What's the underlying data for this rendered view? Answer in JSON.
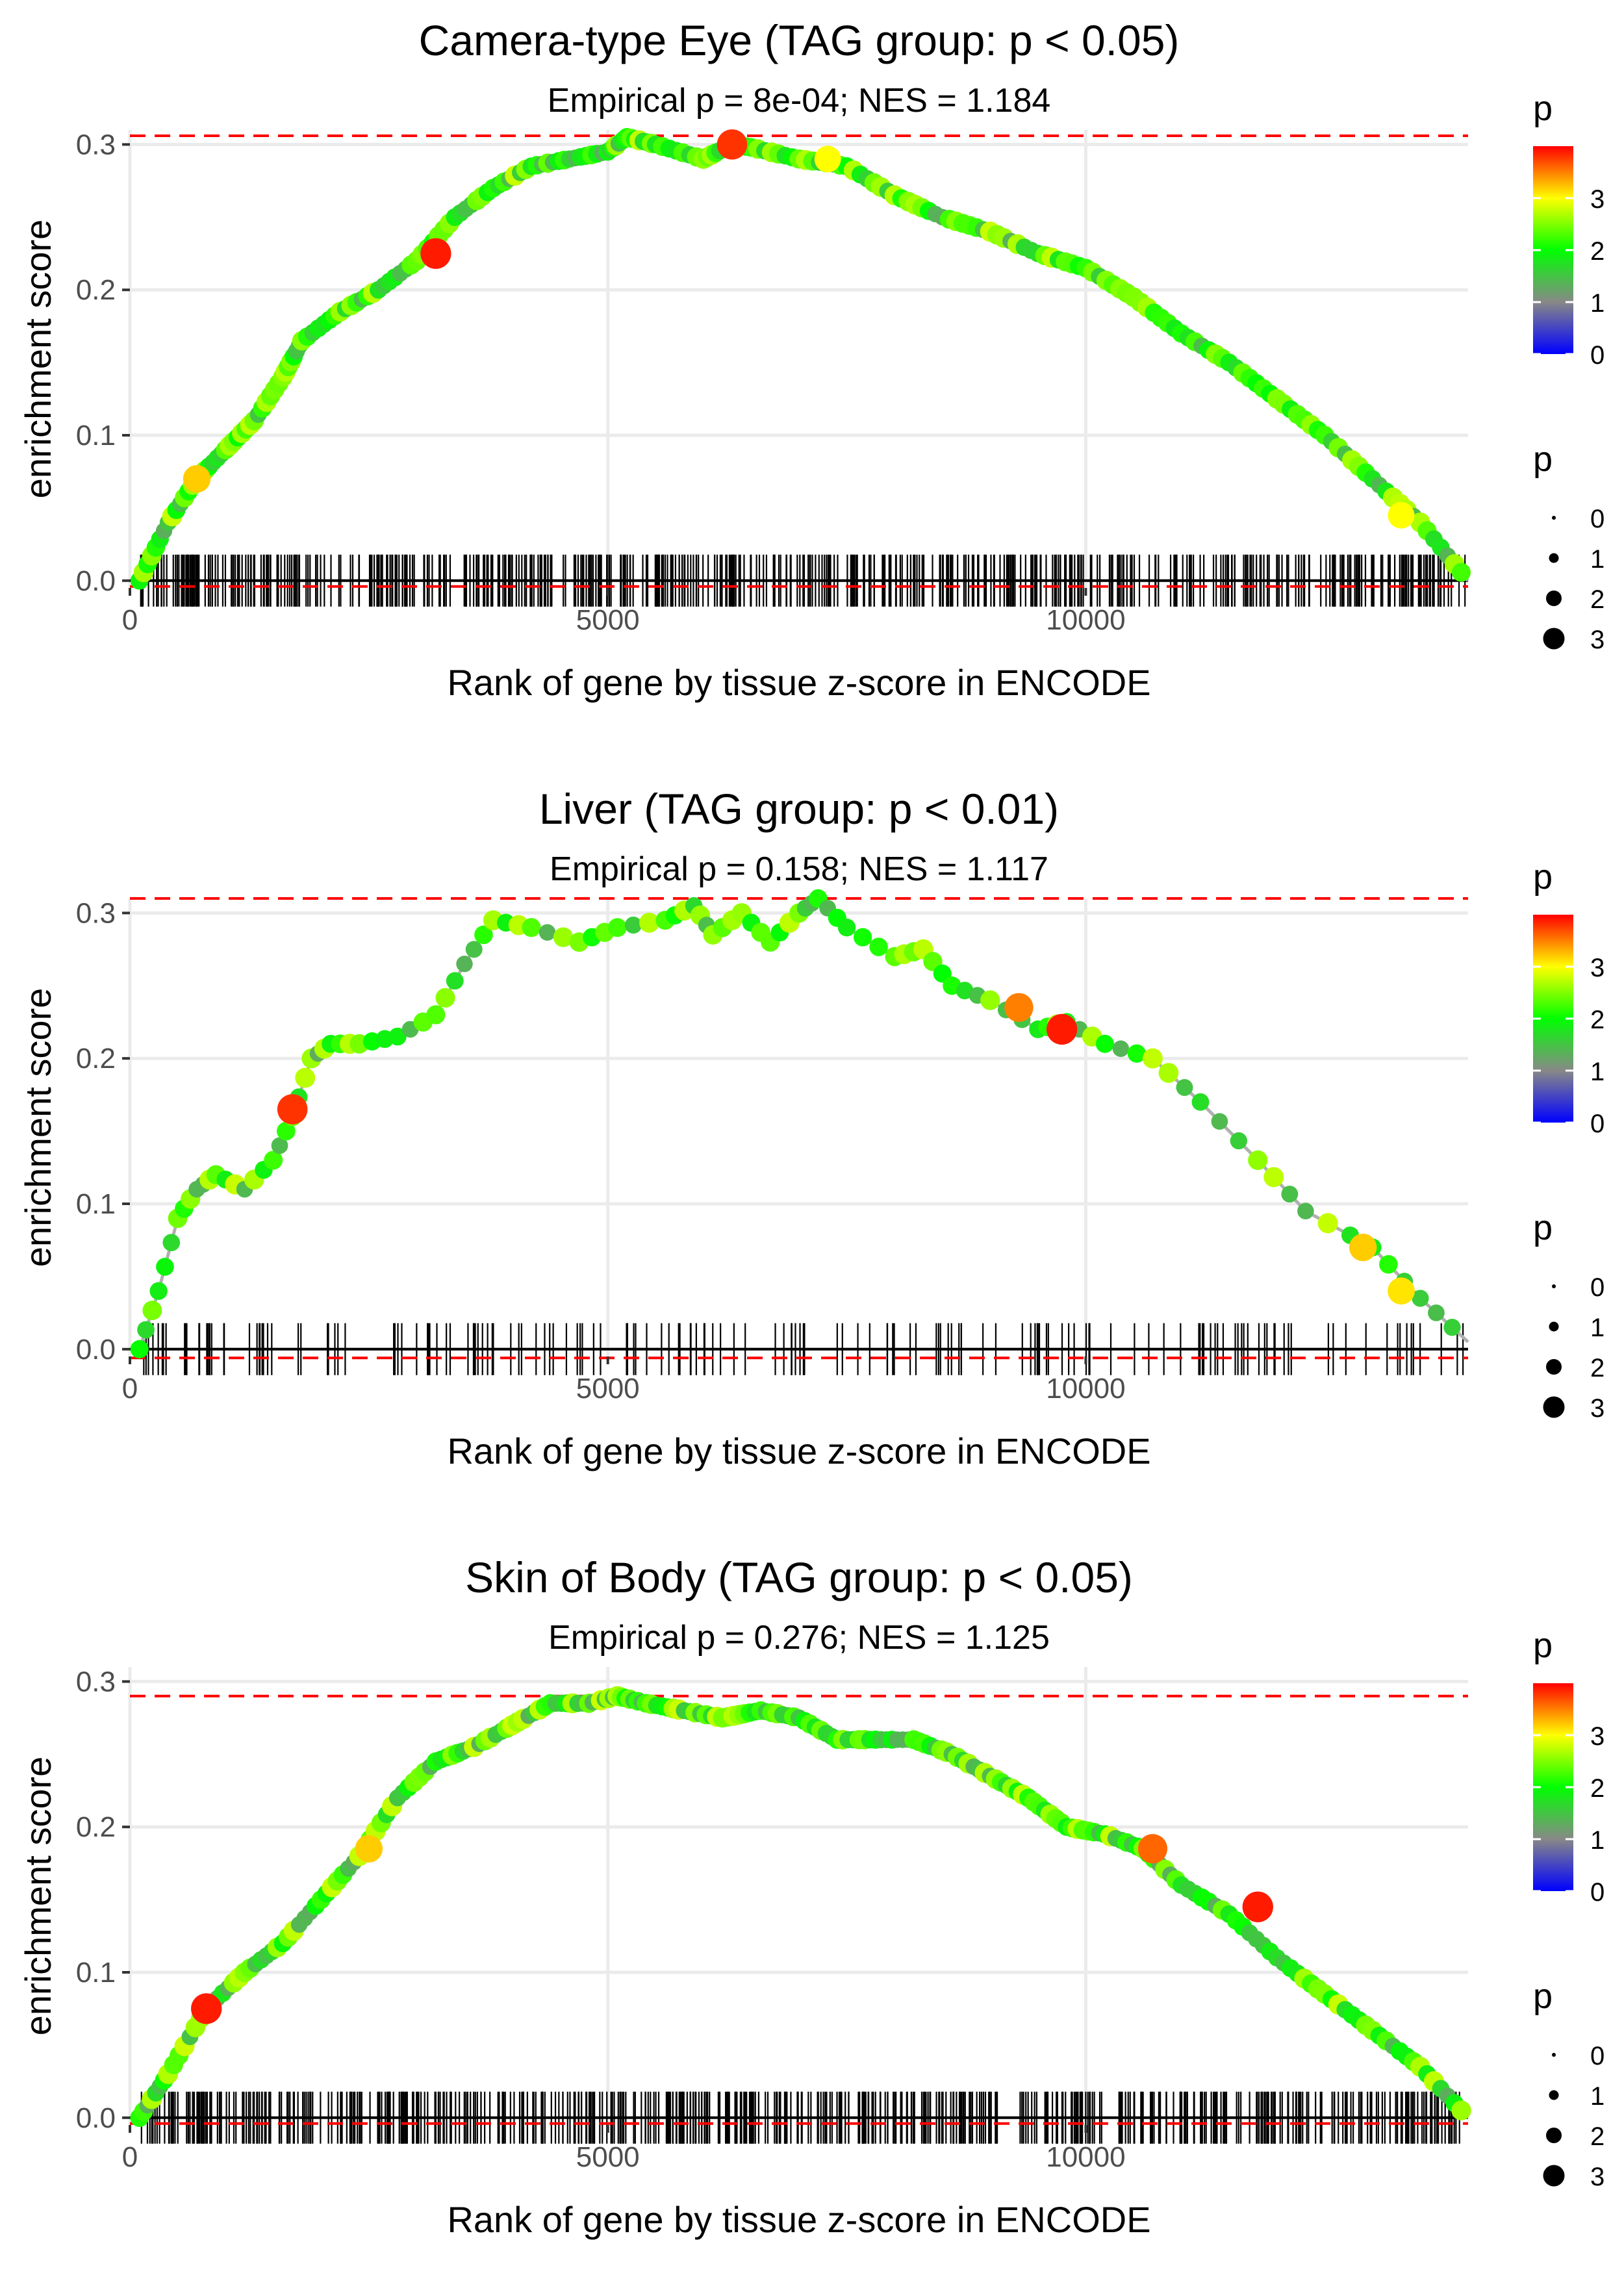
{
  "figure": {
    "x_label": "Rank of gene by tissue z-score in ENCODE",
    "y_label": "enrichment score",
    "color_legend_title": "p",
    "size_legend_title": "p"
  },
  "chart_data": [
    {
      "type": "line",
      "title": "Camera-type Eye (TAG group: p < 0.05)",
      "subtitle": "Empirical p = 8e-04; NES = 1.184",
      "xlabel": "Rank of gene by tissue z-score in ENCODE",
      "ylabel": "enrichment score",
      "xlim": [
        0,
        14000
      ],
      "ylim": [
        -0.005,
        0.31
      ],
      "x_ticks": [
        0,
        5000,
        10000
      ],
      "x_tick_labels": [
        "0",
        "5000",
        "10000"
      ],
      "y_ticks": [
        0,
        0.1,
        0.2,
        0.3
      ],
      "y_tick_labels": [
        "0.0",
        "0.1",
        "0.2",
        "0.3"
      ],
      "max_es": 0.306,
      "min_es": -0.004,
      "color_legend": {
        "title": "p",
        "ticks": [
          0,
          1,
          2,
          3
        ],
        "range": [
          0,
          4
        ],
        "colors": [
          "#0000ff",
          "#888888",
          "#00ff00",
          "#ffff00",
          "#ff0000"
        ]
      },
      "size_legend": {
        "title": "p",
        "values": [
          0,
          1,
          2,
          3
        ]
      },
      "gene_ticks": {
        "density": "dense",
        "from": 100,
        "to": 14000,
        "count": 560
      },
      "series": [
        {
          "name": "running enrichment score",
          "x": [
            100,
            400,
            700,
            1000,
            1300,
            1600,
            1800,
            2200,
            2600,
            3000,
            3400,
            3800,
            4200,
            4600,
            5000,
            5200,
            5500,
            6000,
            6300,
            6500,
            7000,
            7500,
            8000,
            8500,
            9000,
            9500,
            10000,
            10500,
            11000,
            11500,
            12000,
            12500,
            13000,
            13500,
            14000
          ],
          "y": [
            0.0,
            0.04,
            0.07,
            0.09,
            0.11,
            0.14,
            0.165,
            0.185,
            0.2,
            0.22,
            0.25,
            0.27,
            0.285,
            0.29,
            0.295,
            0.305,
            0.3,
            0.29,
            0.3,
            0.298,
            0.29,
            0.285,
            0.265,
            0.25,
            0.24,
            0.225,
            0.215,
            0.195,
            0.17,
            0.15,
            0.125,
            0.1,
            0.07,
            0.04,
            0.0
          ]
        }
      ],
      "highlight_points": {
        "x": [
          700,
          3200,
          6300,
          7300,
          13300
        ],
        "y": [
          0.07,
          0.225,
          0.3,
          0.29,
          0.045
        ],
        "p": [
          3.2,
          3.9,
          3.8,
          3.0,
          3.0
        ]
      }
    },
    {
      "type": "line",
      "title": "Liver (TAG group: p < 0.01)",
      "subtitle": "Empirical p = 0.158; NES = 1.117",
      "xlabel": "Rank of gene by tissue z-score in ENCODE",
      "ylabel": "enrichment score",
      "xlim": [
        0,
        14000
      ],
      "ylim": [
        -0.005,
        0.31
      ],
      "x_ticks": [
        0,
        5000,
        10000
      ],
      "x_tick_labels": [
        "0",
        "5000",
        "10000"
      ],
      "y_ticks": [
        0,
        0.1,
        0.2,
        0.3
      ],
      "y_tick_labels": [
        "0.0",
        "0.1",
        "0.2",
        "0.3"
      ],
      "max_es": 0.31,
      "min_es": -0.006,
      "color_legend": {
        "title": "p",
        "ticks": [
          0,
          1,
          2,
          3
        ],
        "range": [
          0,
          4
        ],
        "colors": [
          "#0000ff",
          "#888888",
          "#00ff00",
          "#ffff00",
          "#ff0000"
        ]
      },
      "size_legend": {
        "title": "p",
        "values": [
          0,
          1,
          2,
          3
        ]
      },
      "gene_ticks": {
        "density": "sparse",
        "from": 100,
        "to": 14000,
        "count": 170
      },
      "series": [
        {
          "name": "running enrichment score",
          "x": [
            100,
            300,
            500,
            700,
            900,
            1200,
            1500,
            1700,
            1900,
            2100,
            2400,
            2800,
            3200,
            3500,
            3800,
            4200,
            4700,
            5100,
            5600,
            5900,
            6100,
            6400,
            6700,
            7000,
            7200,
            7500,
            8000,
            8300,
            8600,
            9000,
            9500,
            9800,
            10200,
            10700,
            11200,
            11800,
            12300,
            13000,
            13500,
            14000
          ],
          "y": [
            0.0,
            0.04,
            0.09,
            0.11,
            0.12,
            0.11,
            0.13,
            0.16,
            0.2,
            0.21,
            0.21,
            0.215,
            0.23,
            0.265,
            0.295,
            0.29,
            0.28,
            0.29,
            0.295,
            0.305,
            0.285,
            0.3,
            0.28,
            0.3,
            0.31,
            0.29,
            0.27,
            0.275,
            0.25,
            0.24,
            0.22,
            0.225,
            0.21,
            0.2,
            0.17,
            0.13,
            0.095,
            0.07,
            0.035,
            0.005
          ]
        }
      ],
      "highlight_points": {
        "x": [
          1700,
          9300,
          9750,
          12900,
          13300
        ],
        "y": [
          0.165,
          0.235,
          0.22,
          0.07,
          0.04
        ],
        "p": [
          3.8,
          3.5,
          3.9,
          3.2,
          3.1
        ]
      }
    },
    {
      "type": "line",
      "title": "Skin of Body (TAG group: p < 0.05)",
      "subtitle": "Empirical p = 0.276; NES = 1.125",
      "xlabel": "Rank of gene by tissue z-score in ENCODE",
      "ylabel": "enrichment score",
      "xlim": [
        0,
        14000
      ],
      "ylim": [
        -0.005,
        0.31
      ],
      "x_ticks": [
        0,
        5000,
        10000
      ],
      "x_tick_labels": [
        "0",
        "5000",
        "10000"
      ],
      "y_ticks": [
        0,
        0.1,
        0.2,
        0.3
      ],
      "y_tick_labels": [
        "0.0",
        "0.1",
        "0.2",
        "0.3"
      ],
      "max_es": 0.29,
      "min_es": -0.004,
      "color_legend": {
        "title": "p",
        "ticks": [
          0,
          1,
          2,
          3
        ],
        "range": [
          0,
          4
        ],
        "colors": [
          "#0000ff",
          "#888888",
          "#00ff00",
          "#ffff00",
          "#ff0000"
        ]
      },
      "size_legend": {
        "title": "p",
        "values": [
          0,
          1,
          2,
          3
        ]
      },
      "gene_ticks": {
        "density": "dense",
        "from": 100,
        "to": 14000,
        "count": 560
      },
      "series": [
        {
          "name": "running enrichment score",
          "x": [
            100,
            400,
            800,
            1200,
            1600,
            2000,
            2400,
            2800,
            3200,
            3600,
            4000,
            4400,
            4800,
            5100,
            5400,
            5800,
            6200,
            6600,
            7000,
            7400,
            7800,
            8200,
            8600,
            9000,
            9400,
            9800,
            10200,
            10600,
            11000,
            11500,
            12000,
            12500,
            13000,
            13500,
            14000
          ],
          "y": [
            0.0,
            0.03,
            0.075,
            0.1,
            0.12,
            0.15,
            0.18,
            0.22,
            0.245,
            0.255,
            0.27,
            0.285,
            0.285,
            0.29,
            0.285,
            0.28,
            0.275,
            0.28,
            0.275,
            0.26,
            0.26,
            0.26,
            0.25,
            0.235,
            0.22,
            0.2,
            0.195,
            0.185,
            0.16,
            0.14,
            0.11,
            0.085,
            0.06,
            0.035,
            0.0
          ]
        }
      ],
      "highlight_points": {
        "x": [
          800,
          2500,
          10700,
          11800
        ],
        "y": [
          0.075,
          0.185,
          0.185,
          0.145
        ],
        "p": [
          3.9,
          3.2,
          3.6,
          3.9
        ]
      }
    }
  ]
}
